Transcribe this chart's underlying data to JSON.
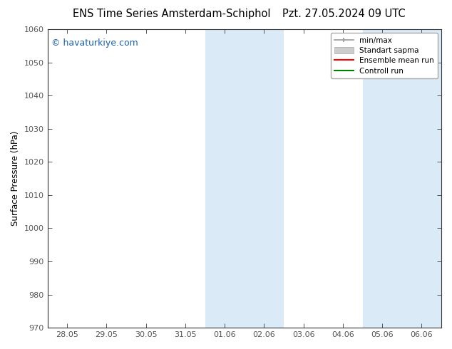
{
  "title_left": "ENS Time Series Amsterdam-Schiphol",
  "title_right": "Pzt. 27.05.2024 09 UTC",
  "ylabel": "Surface Pressure (hPa)",
  "ylim": [
    970,
    1060
  ],
  "yticks": [
    970,
    980,
    990,
    1000,
    1010,
    1020,
    1030,
    1040,
    1050,
    1060
  ],
  "xtick_labels": [
    "28.05",
    "29.05",
    "30.05",
    "31.05",
    "01.06",
    "02.06",
    "03.06",
    "04.06",
    "05.06",
    "06.06"
  ],
  "watermark": "© havaturkiye.com",
  "watermark_color": "#1a5fb4",
  "background_color": "#ffffff",
  "plot_bg_color": "#ffffff",
  "shaded_color": "#daeaf7",
  "legend_entries": [
    {
      "label": "min/max",
      "color": "#aaaaaa",
      "lw": 1.2
    },
    {
      "label": "Standart sapma",
      "color": "#cccccc",
      "lw": 5
    },
    {
      "label": "Ensemble mean run",
      "color": "#ff0000",
      "lw": 1.5
    },
    {
      "label": "Controll run",
      "color": "#008000",
      "lw": 1.5
    }
  ],
  "x_numeric": [
    0,
    1,
    2,
    3,
    4,
    5,
    6,
    7,
    8,
    9
  ],
  "xlim": [
    -0.5,
    9.5
  ],
  "tick_color": "#555555",
  "spine_color": "#333333",
  "title_fontsize": 10.5,
  "axis_label_fontsize": 8.5,
  "tick_fontsize": 8,
  "watermark_fontsize": 9
}
